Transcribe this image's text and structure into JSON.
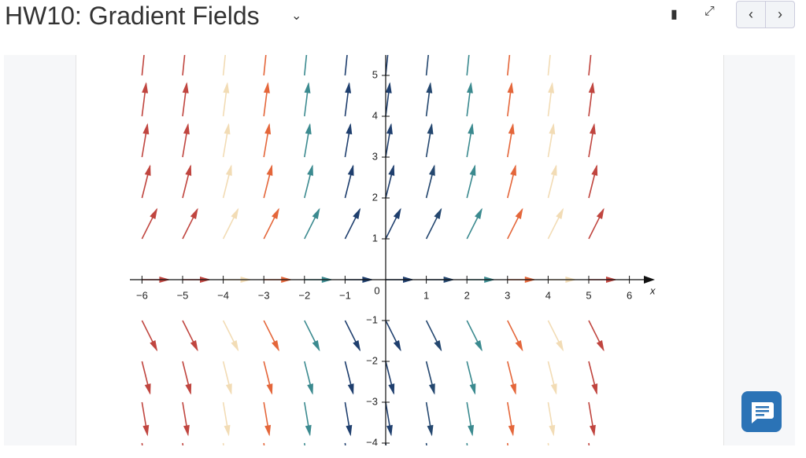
{
  "header": {
    "title": "HW10: Gradient Fields"
  },
  "plot": {
    "x_label": "x",
    "origin_label": "0",
    "x_ticks": [
      {
        "value": -6,
        "label": "−6"
      },
      {
        "value": -5,
        "label": "−5"
      },
      {
        "value": -4,
        "label": "−4"
      },
      {
        "value": -3,
        "label": "−3"
      },
      {
        "value": -2,
        "label": "−2"
      },
      {
        "value": -1,
        "label": "−1"
      },
      1,
      2,
      3,
      4,
      5,
      6
    ],
    "y_ticks": [
      5,
      4,
      3,
      2,
      1,
      {
        "value": -1,
        "label": "−1"
      },
      {
        "value": -2,
        "label": "−2"
      },
      {
        "value": -3,
        "label": "−3"
      },
      {
        "value": -4,
        "label": "−4"
      }
    ]
  }
}
